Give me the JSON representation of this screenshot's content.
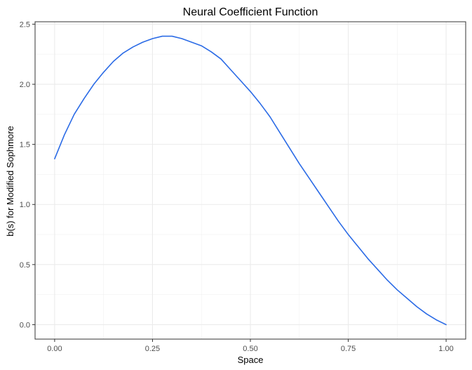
{
  "chart_data": {
    "type": "line",
    "title": "Neural Coefficient Function",
    "xlabel": "Space",
    "ylabel": "b(s) for Modified Sophmore",
    "xlim": [
      -0.05,
      1.05
    ],
    "ylim": [
      -0.12,
      2.52
    ],
    "x_ticks": [
      0.0,
      0.25,
      0.5,
      0.75,
      1.0
    ],
    "x_tick_labels": [
      "0.00",
      "0.25",
      "0.50",
      "0.75",
      "1.00"
    ],
    "y_ticks": [
      0.0,
      0.5,
      1.0,
      1.5,
      2.0,
      2.5
    ],
    "y_tick_labels": [
      "0.0",
      "0.5",
      "1.0",
      "1.5",
      "2.0",
      "2.5"
    ],
    "grid": true,
    "legend": "none",
    "series": [
      {
        "color": "#2b6be6",
        "x": [
          0.0,
          0.025,
          0.05,
          0.075,
          0.1,
          0.125,
          0.15,
          0.175,
          0.2,
          0.225,
          0.25,
          0.275,
          0.3,
          0.325,
          0.35,
          0.375,
          0.4,
          0.425,
          0.45,
          0.475,
          0.5,
          0.525,
          0.55,
          0.575,
          0.6,
          0.625,
          0.65,
          0.675,
          0.7,
          0.725,
          0.75,
          0.775,
          0.8,
          0.825,
          0.85,
          0.875,
          0.9,
          0.925,
          0.95,
          0.975,
          1.0
        ],
        "y": [
          1.38,
          1.58,
          1.75,
          1.88,
          2.0,
          2.1,
          2.19,
          2.26,
          2.31,
          2.35,
          2.38,
          2.4,
          2.4,
          2.38,
          2.35,
          2.32,
          2.27,
          2.21,
          2.12,
          2.03,
          1.94,
          1.84,
          1.73,
          1.6,
          1.47,
          1.34,
          1.22,
          1.1,
          0.98,
          0.86,
          0.75,
          0.65,
          0.55,
          0.46,
          0.37,
          0.29,
          0.22,
          0.15,
          0.09,
          0.04,
          0.0
        ]
      }
    ]
  }
}
